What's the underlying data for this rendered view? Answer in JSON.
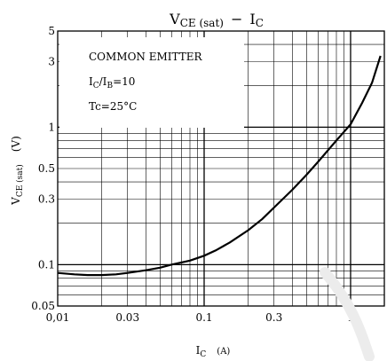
{
  "chart_data": {
    "type": "line",
    "title": {
      "main": "V",
      "main_sub": "CE (sat)",
      "dash": "−",
      "rhs": "I",
      "rhs_sub": "C"
    },
    "ylabel": {
      "main": "V",
      "sub": "CE (sat)",
      "unit": "(V)"
    },
    "xlabel": {
      "main": "I",
      "sub": "C",
      "unit": "(A)"
    },
    "x_scale": "log",
    "y_scale": "log",
    "xlim": [
      0.01,
      1.7
    ],
    "ylim": [
      0.05,
      5
    ],
    "x_ticks": [
      {
        "value": 0.01,
        "label": "0,01"
      },
      {
        "value": 0.03,
        "label": "0.03"
      },
      {
        "value": 0.1,
        "label": "0.1"
      },
      {
        "value": 0.3,
        "label": "0.3"
      },
      {
        "value": 1,
        "label": "1"
      }
    ],
    "y_ticks": [
      {
        "value": 0.05,
        "label": "0.05"
      },
      {
        "value": 0.1,
        "label": "0.1"
      },
      {
        "value": 0.3,
        "label": "0.3"
      },
      {
        "value": 0.5,
        "label": "0.5"
      },
      {
        "value": 1,
        "label": "1"
      },
      {
        "value": 3,
        "label": "3"
      },
      {
        "value": 5,
        "label": "5"
      }
    ],
    "grid": true,
    "annotations": {
      "line1": "COMMON EMITTER",
      "line2_main": "I",
      "line2_sub1": "C",
      "line2_mid": "/I",
      "line2_sub2": "B",
      "line2_end": "=10",
      "line3": "Tc=25°C"
    },
    "series": [
      {
        "x": [
          0.01,
          0.013,
          0.016,
          0.02,
          0.025,
          0.03,
          0.04,
          0.05,
          0.06,
          0.08,
          0.1,
          0.12,
          0.15,
          0.2,
          0.25,
          0.3,
          0.4,
          0.5,
          0.6,
          0.8,
          1.0,
          1.2,
          1.4,
          1.6
        ],
        "values": [
          0.087,
          0.085,
          0.084,
          0.084,
          0.085,
          0.087,
          0.091,
          0.095,
          0.1,
          0.107,
          0.116,
          0.127,
          0.145,
          0.178,
          0.215,
          0.26,
          0.35,
          0.45,
          0.56,
          0.8,
          1.05,
          1.5,
          2.1,
          3.3
        ]
      }
    ]
  }
}
